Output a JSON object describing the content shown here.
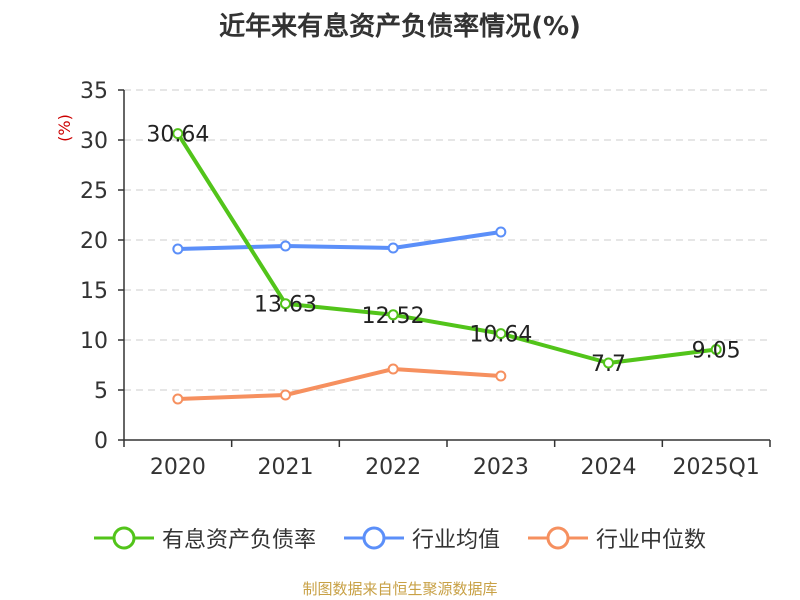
{
  "chart_data": {
    "type": "line",
    "title": "近年来有息资产负债率情况(%)",
    "ylabel": "(%)",
    "xlabel": "",
    "categories": [
      "2020",
      "2021",
      "2022",
      "2023",
      "2024",
      "2025Q1"
    ],
    "ylim": [
      0,
      35
    ],
    "yticks": [
      0,
      5,
      10,
      15,
      20,
      25,
      30,
      35
    ],
    "grid": true,
    "legend_position": "bottom",
    "series": [
      {
        "name": "有息资产负债率",
        "color": "#52c41a",
        "values": [
          30.64,
          13.63,
          12.52,
          10.64,
          7.7,
          9.05
        ],
        "labels": [
          "30.64",
          "13.63",
          "12.52",
          "10.64",
          "7.7",
          "9.05"
        ]
      },
      {
        "name": "行业均值",
        "color": "#5b8ff9",
        "values": [
          19.1,
          19.4,
          19.2,
          20.8,
          null,
          null
        ]
      },
      {
        "name": "行业中位数",
        "color": "#f6905f",
        "values": [
          4.1,
          4.5,
          7.1,
          6.4,
          null,
          null
        ]
      }
    ]
  },
  "source_note": "制图数据来自恒生聚源数据库",
  "colors": {
    "axis": "#333333",
    "grid": "#cccccc",
    "ylabel": "#cc0000"
  }
}
